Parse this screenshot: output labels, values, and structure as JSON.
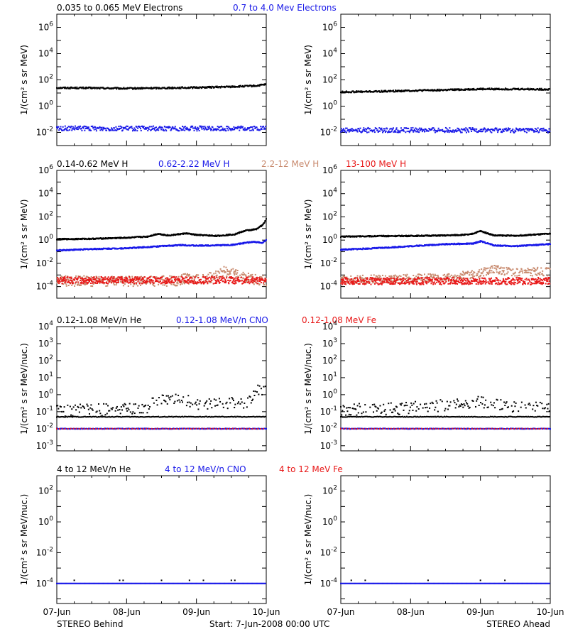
{
  "colors": {
    "black": "#000000",
    "blue": "#1818e8",
    "tan": "#c88a6e",
    "red": "#e81818"
  },
  "footer": {
    "x_ticks": [
      "07-Jun",
      "08-Jun",
      "09-Jun",
      "10-Jun"
    ],
    "left": "STEREO Behind",
    "center": "Start:  7-Jun-2008 00:00 UTC",
    "right": "STEREO Ahead"
  },
  "chart_data": [
    {
      "type": "scatter",
      "panel": "electrons-behind",
      "legend": [
        {
          "text": "0.035 to 0.065 MeV Electrons",
          "color": "#000000"
        },
        {
          "text": "0.7 to 4.0 Mev Electrons",
          "color": "#1818e8"
        }
      ],
      "ylabel": "1/(cm² s sr MeV)",
      "yscale": "log",
      "ylim": [
        0.001,
        10000000
      ],
      "yticks": [
        {
          "v": 0.01,
          "e": "-2"
        },
        {
          "v": 1,
          "e": "0"
        },
        {
          "v": 100,
          "e": "2"
        },
        {
          "v": 10000,
          "e": "4"
        },
        {
          "v": 1000000,
          "e": "6"
        }
      ],
      "xlim": [
        0,
        3
      ],
      "series": [
        {
          "color": "#000000",
          "x": [
            0,
            0.5,
            1.0,
            1.5,
            2.0,
            2.5,
            2.85,
            3.0
          ],
          "y": [
            25,
            24,
            22,
            24,
            26,
            30,
            35,
            45
          ],
          "jitter": 0.06,
          "step": 0.008
        },
        {
          "color": "#1818e8",
          "x": [
            0,
            1.5,
            3.0
          ],
          "y": [
            0.02,
            0.02,
            0.02
          ],
          "jitter": 0.18,
          "step": 0.008
        }
      ]
    },
    {
      "type": "scatter",
      "panel": "electrons-ahead",
      "ylabel": "1/(cm² s sr MeV)",
      "yscale": "log",
      "ylim": [
        0.001,
        10000000
      ],
      "yticks": [
        {
          "v": 0.01,
          "e": "-2"
        },
        {
          "v": 1,
          "e": "0"
        },
        {
          "v": 100,
          "e": "2"
        },
        {
          "v": 10000,
          "e": "4"
        },
        {
          "v": 1000000,
          "e": "6"
        }
      ],
      "xlim": [
        0,
        3
      ],
      "series": [
        {
          "color": "#000000",
          "x": [
            0,
            0.5,
            1.0,
            1.5,
            2.0,
            2.5,
            3.0
          ],
          "y": [
            12,
            13,
            15,
            17,
            20,
            20,
            19
          ],
          "jitter": 0.06,
          "step": 0.008
        },
        {
          "color": "#1818e8",
          "x": [
            0,
            1.5,
            3.0
          ],
          "y": [
            0.015,
            0.015,
            0.014
          ],
          "jitter": 0.18,
          "step": 0.008
        }
      ]
    },
    {
      "type": "scatter",
      "panel": "protons-behind",
      "legend": [
        {
          "text": "0.14-0.62 MeV H",
          "color": "#000000"
        },
        {
          "text": "0.62-2.22 MeV H",
          "color": "#1818e8"
        },
        {
          "text": "2.2-12 MeV H",
          "color": "#c88a6e"
        },
        {
          "text": "13-100 MeV H",
          "color": "#e81818"
        }
      ],
      "ylabel": "1/(cm² s sr MeV)",
      "yscale": "log",
      "ylim": [
        1e-05,
        1000000
      ],
      "yticks": [
        {
          "v": 0.0001,
          "e": "-4"
        },
        {
          "v": 0.01,
          "e": "-2"
        },
        {
          "v": 1,
          "e": "0"
        },
        {
          "v": 100,
          "e": "2"
        },
        {
          "v": 10000,
          "e": "4"
        },
        {
          "v": 1000000,
          "e": "6"
        }
      ],
      "xlim": [
        0,
        3
      ],
      "series": [
        {
          "color": "#000000",
          "x": [
            0,
            0.5,
            1.0,
            1.3,
            1.45,
            1.6,
            1.85,
            2.0,
            2.3,
            2.55,
            2.7,
            2.85,
            2.95,
            3.0
          ],
          "y": [
            1.2,
            1.3,
            1.6,
            2.0,
            3.5,
            2.5,
            3.8,
            2.8,
            2.3,
            3.2,
            6.5,
            8.5,
            20,
            60
          ],
          "jitter": 0.05,
          "step": 0.006
        },
        {
          "color": "#1818e8",
          "x": [
            0,
            0.5,
            1.0,
            1.5,
            1.8,
            2.0,
            2.5,
            2.8,
            2.95,
            3.0
          ],
          "y": [
            0.13,
            0.17,
            0.2,
            0.3,
            0.38,
            0.33,
            0.38,
            0.7,
            0.6,
            1.1
          ],
          "jitter": 0.05,
          "step": 0.006
        },
        {
          "color": "#c88a6e",
          "x": [
            0,
            1.0,
            1.7,
            1.85,
            2.0,
            2.2,
            2.4,
            2.6,
            2.8,
            3.0
          ],
          "y": [
            0.0003,
            0.0003,
            0.0003,
            0.0005,
            0.0004,
            0.0006,
            0.002,
            0.0009,
            0.0004,
            0.0003
          ],
          "jitter": 0.45,
          "step": 0.005
        },
        {
          "color": "#e81818",
          "x": [
            0,
            1.5,
            3.0
          ],
          "y": [
            0.00035,
            0.00035,
            0.00035
          ],
          "jitter": 0.3,
          "step": 0.004
        }
      ]
    },
    {
      "type": "scatter",
      "panel": "protons-ahead",
      "ylabel": "1/(cm² s sr MeV)",
      "yscale": "log",
      "ylim": [
        1e-05,
        1000000
      ],
      "yticks": [
        {
          "v": 0.0001,
          "e": "-4"
        },
        {
          "v": 0.01,
          "e": "-2"
        },
        {
          "v": 1,
          "e": "0"
        },
        {
          "v": 100,
          "e": "2"
        },
        {
          "v": 10000,
          "e": "4"
        },
        {
          "v": 1000000,
          "e": "6"
        }
      ],
      "xlim": [
        0,
        3
      ],
      "series": [
        {
          "color": "#000000",
          "x": [
            0,
            0.5,
            1.0,
            1.5,
            1.85,
            2.0,
            2.2,
            2.5,
            3.0
          ],
          "y": [
            2.0,
            2.2,
            2.3,
            2.5,
            3.0,
            6.0,
            2.5,
            2.4,
            3.5
          ],
          "jitter": 0.05,
          "step": 0.006
        },
        {
          "color": "#1818e8",
          "x": [
            0,
            0.5,
            1.0,
            1.5,
            1.9,
            2.0,
            2.2,
            2.5,
            3.0
          ],
          "y": [
            0.15,
            0.2,
            0.3,
            0.45,
            0.5,
            0.8,
            0.35,
            0.3,
            0.45
          ],
          "jitter": 0.05,
          "step": 0.006
        },
        {
          "color": "#c88a6e",
          "x": [
            0,
            1.0,
            1.6,
            1.8,
            2.0,
            2.2,
            2.5,
            2.8,
            3.0
          ],
          "y": [
            0.0004,
            0.0005,
            0.0006,
            0.001,
            0.0015,
            0.003,
            0.0015,
            0.002,
            0.0018
          ],
          "jitter": 0.35,
          "step": 0.005
        },
        {
          "color": "#e81818",
          "x": [
            0,
            1.5,
            3.0
          ],
          "y": [
            0.0003,
            0.0003,
            0.0003
          ],
          "jitter": 0.3,
          "step": 0.004
        }
      ]
    },
    {
      "type": "scatter",
      "panel": "lowheavy-behind",
      "legend": [
        {
          "text": "0.12-1.08 MeV/n He",
          "color": "#000000"
        },
        {
          "text": "0.12-1.08 MeV/n CNO",
          "color": "#1818e8"
        },
        {
          "text": "0.12-1.08 MeV Fe",
          "color": "#e81818"
        }
      ],
      "ylabel": "1/(cm² s sr MeV/nuc.)",
      "yscale": "log",
      "ylim": [
        0.0005,
        10000
      ],
      "yticks": [
        {
          "v": 0.001,
          "e": "-3"
        },
        {
          "v": 0.01,
          "e": "-2"
        },
        {
          "v": 0.1,
          "e": "-1"
        },
        {
          "v": 1,
          "e": "0"
        },
        {
          "v": 10,
          "e": "1"
        },
        {
          "v": 100,
          "e": "2"
        },
        {
          "v": 1000,
          "e": "3"
        },
        {
          "v": 10000,
          "e": "4"
        }
      ],
      "xlim": [
        0,
        3
      ],
      "series": [
        {
          "color": "#000000",
          "x": [
            0,
            0.8,
            1.3,
            1.45,
            1.6,
            1.75,
            2.0,
            2.5,
            2.75,
            2.85,
            3.0
          ],
          "y": [
            0.12,
            0.13,
            0.15,
            0.6,
            0.4,
            0.7,
            0.3,
            0.35,
            0.3,
            2.0,
            1.6
          ],
          "jitter": 0.35,
          "step": 0.012
        },
        {
          "color": "#000000",
          "x": [
            0,
            3.0
          ],
          "y": [
            0.05,
            0.05
          ],
          "jitter": 0.02,
          "step": 0.015
        },
        {
          "color": "#1818e8",
          "x": [
            0,
            3.0
          ],
          "y": [
            0.01,
            0.01
          ],
          "jitter": 0.02,
          "step": 0.01
        },
        {
          "color": "#e81818",
          "x": [
            0,
            3.0
          ],
          "y": [
            0.01,
            0.01
          ],
          "jitter": 0.01,
          "step": 0.04
        }
      ]
    },
    {
      "type": "scatter",
      "panel": "lowheavy-ahead",
      "ylabel": "1/(cm² s sr MeV/nuc.)",
      "yscale": "log",
      "ylim": [
        0.0005,
        10000
      ],
      "yticks": [
        {
          "v": 0.001,
          "e": "-3"
        },
        {
          "v": 0.01,
          "e": "-2"
        },
        {
          "v": 0.1,
          "e": "-1"
        },
        {
          "v": 1,
          "e": "0"
        },
        {
          "v": 10,
          "e": "1"
        },
        {
          "v": 100,
          "e": "2"
        },
        {
          "v": 1000,
          "e": "3"
        },
        {
          "v": 10000,
          "e": "4"
        }
      ],
      "xlim": [
        0,
        3
      ],
      "series": [
        {
          "color": "#000000",
          "x": [
            0,
            0.8,
            1.3,
            1.8,
            2.0,
            2.2,
            2.5,
            3.0
          ],
          "y": [
            0.13,
            0.15,
            0.2,
            0.3,
            0.4,
            0.3,
            0.2,
            0.18
          ],
          "jitter": 0.35,
          "step": 0.012
        },
        {
          "color": "#000000",
          "x": [
            0,
            3.0
          ],
          "y": [
            0.05,
            0.05
          ],
          "jitter": 0.02,
          "step": 0.015
        },
        {
          "color": "#1818e8",
          "x": [
            0,
            3.0
          ],
          "y": [
            0.01,
            0.01
          ],
          "jitter": 0.02,
          "step": 0.01
        },
        {
          "color": "#e81818",
          "x": [
            0,
            3.0
          ],
          "y": [
            0.01,
            0.01
          ],
          "jitter": 0.01,
          "step": 0.04
        }
      ]
    },
    {
      "type": "scatter",
      "panel": "highheavy-behind",
      "legend": [
        {
          "text": "4 to 12 MeV/n He",
          "color": "#000000"
        },
        {
          "text": "4 to 12 MeV/n CNO",
          "color": "#1818e8"
        },
        {
          "text": "4 to 12 MeV Fe",
          "color": "#e81818"
        }
      ],
      "ylabel": "1/(cm² s sr MeV/nuc.)",
      "yscale": "log",
      "ylim": [
        5e-06,
        1000
      ],
      "yticks": [
        {
          "v": 0.0001,
          "e": "-4"
        },
        {
          "v": 0.01,
          "e": "-2"
        },
        {
          "v": 1,
          "e": "0"
        },
        {
          "v": 100,
          "e": "2"
        }
      ],
      "xlim": [
        0,
        3
      ],
      "series": [
        {
          "color": "#1818e8",
          "x": [
            0,
            3.0
          ],
          "y": [
            0.0001,
            0.0001
          ],
          "jitter": 0.0,
          "step": 0.012
        },
        {
          "color": "#000000",
          "x": [
            0.25,
            0.9,
            0.95,
            1.5,
            1.9,
            2.1,
            2.5,
            2.55
          ],
          "y": [
            0.00016,
            0.00016,
            0.00016,
            0.00016,
            0.00016,
            0.00016,
            0.00016,
            0.00016
          ],
          "jitter": 0.0,
          "step": 0.0
        }
      ]
    },
    {
      "type": "scatter",
      "panel": "highheavy-ahead",
      "ylabel": "1/(cm² s sr MeV/nuc.)",
      "yscale": "log",
      "ylim": [
        5e-06,
        1000
      ],
      "yticks": [
        {
          "v": 0.0001,
          "e": "-4"
        },
        {
          "v": 0.01,
          "e": "-2"
        },
        {
          "v": 1,
          "e": "0"
        },
        {
          "v": 100,
          "e": "2"
        }
      ],
      "xlim": [
        0,
        3
      ],
      "series": [
        {
          "color": "#1818e8",
          "x": [
            0,
            3.0
          ],
          "y": [
            0.0001,
            0.0001
          ],
          "jitter": 0.0,
          "step": 0.012
        },
        {
          "color": "#000000",
          "x": [
            0.15,
            0.35,
            1.25,
            2.0,
            2.35
          ],
          "y": [
            0.00016,
            0.00016,
            0.00016,
            0.00016,
            0.00016
          ],
          "jitter": 0.0,
          "step": 0.0
        }
      ]
    }
  ]
}
